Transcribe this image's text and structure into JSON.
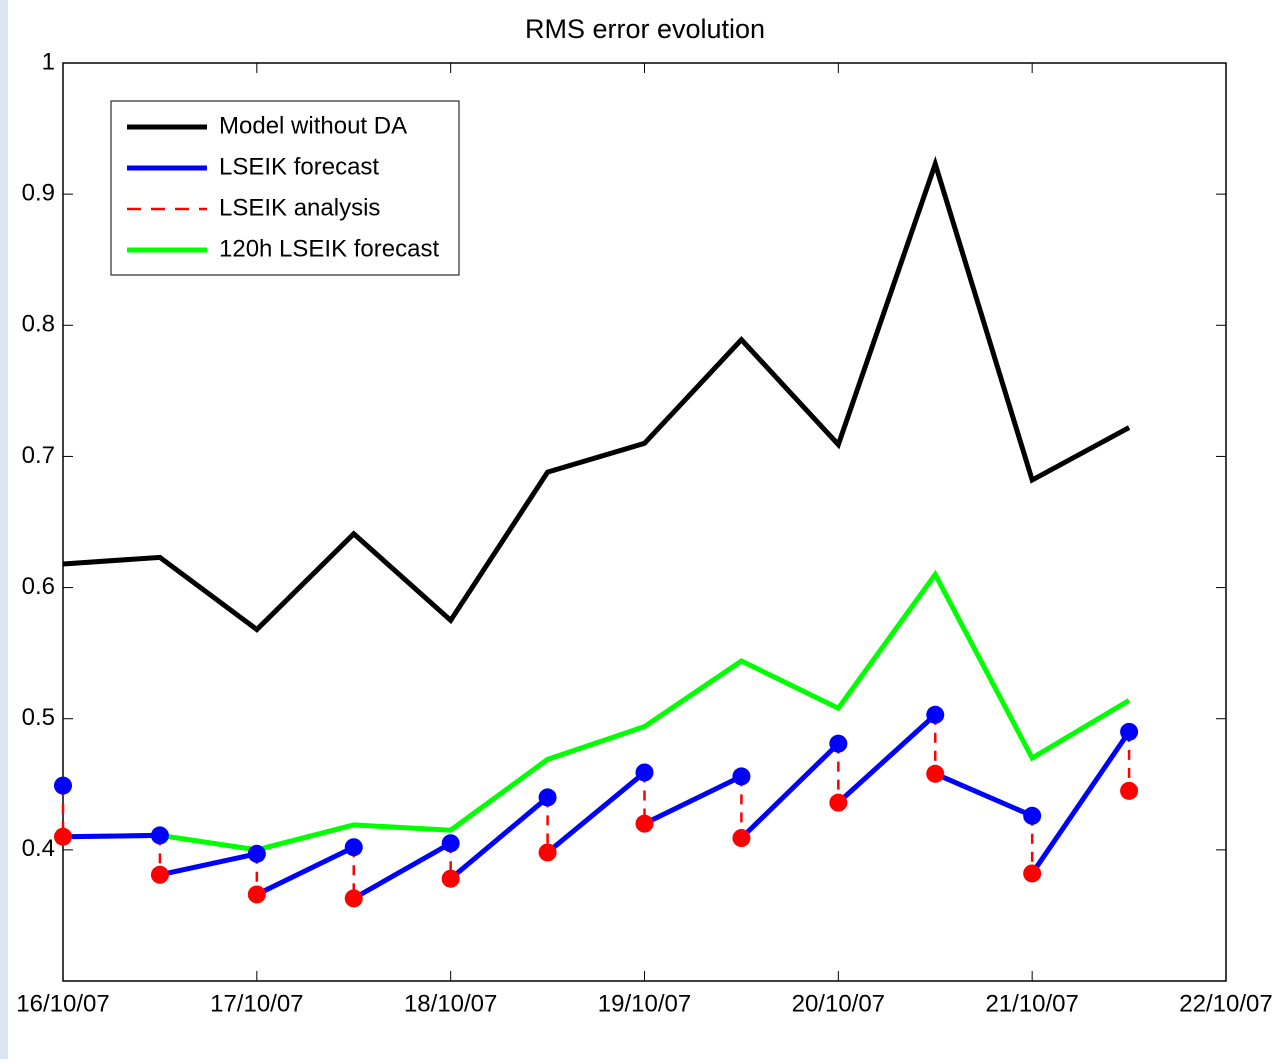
{
  "chart_data": {
    "type": "line",
    "title": "RMS error evolution",
    "x": [
      0,
      0.5,
      1,
      1.5,
      2,
      2.5,
      3,
      3.5,
      4,
      4.5,
      5,
      5.5
    ],
    "xlim": [
      0,
      6
    ],
    "xticks": [
      {
        "value": 0,
        "label": "16/10/07"
      },
      {
        "value": 1,
        "label": "17/10/07"
      },
      {
        "value": 2,
        "label": "18/10/07"
      },
      {
        "value": 3,
        "label": "19/10/07"
      },
      {
        "value": 4,
        "label": "20/10/07"
      },
      {
        "value": 5,
        "label": "21/10/07"
      },
      {
        "value": 6,
        "label": "22/10/07"
      }
    ],
    "ylim": [
      0.3,
      1
    ],
    "yticks": [
      0.4,
      0.5,
      0.6,
      0.7,
      0.8,
      0.9,
      1
    ],
    "legend": "upper left",
    "series": [
      {
        "name": "Model without DA",
        "color": "#000000",
        "values": [
          0.618,
          0.623,
          0.568,
          0.641,
          0.575,
          0.688,
          0.71,
          0.789,
          0.709,
          0.923,
          0.682,
          0.722
        ]
      },
      {
        "name": "LSEIK forecast",
        "color": "#0000ff",
        "values": [
          0.449,
          0.411,
          0.397,
          0.402,
          0.405,
          0.44,
          0.459,
          0.456,
          0.481,
          0.503,
          0.426,
          0.49
        ]
      },
      {
        "name": "LSEIK analysis",
        "color": "#ff0000",
        "values": [
          0.41,
          0.381,
          0.366,
          0.363,
          0.378,
          0.398,
          0.42,
          0.409,
          0.436,
          0.458,
          0.382,
          0.445
        ]
      },
      {
        "name": "120h LSEIK forecast",
        "color": "#00ff00",
        "values": [
          0.41,
          0.411,
          0.4,
          0.419,
          0.415,
          0.469,
          0.494,
          0.544,
          0.508,
          0.61,
          0.47,
          0.514
        ]
      }
    ]
  }
}
